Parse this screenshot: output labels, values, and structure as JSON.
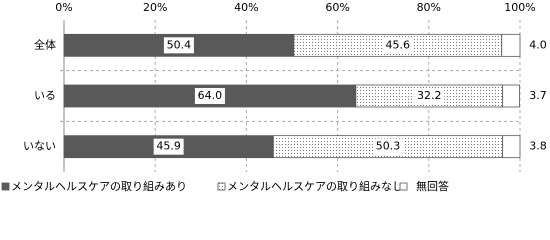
{
  "chart_data": {
    "type": "stacked-barh",
    "categories": [
      "全体",
      "いる",
      "いない"
    ],
    "series": [
      {
        "name": "メンタルヘルスケアの取り組みあり",
        "color": "#595959",
        "values": [
          50.4,
          64.0,
          45.9
        ],
        "value_labels": [
          "50.4",
          "64.0",
          "45.9"
        ]
      },
      {
        "name": "メンタルヘルスケアの取り組みなし",
        "color": "#ffffff",
        "pattern": "dots",
        "values": [
          45.6,
          32.2,
          50.3
        ],
        "value_labels": [
          "45.6",
          "32.2",
          "50.3"
        ]
      },
      {
        "name": "無回答",
        "color": "#ffffff",
        "values": [
          4.0,
          3.7,
          3.8
        ],
        "value_labels": [
          "4.0",
          "3.7",
          "3.8"
        ]
      }
    ],
    "xlim": [
      0,
      100
    ],
    "xticks": [
      {
        "value": 0,
        "label": "0%"
      },
      {
        "value": 20,
        "label": "20%"
      },
      {
        "value": 40,
        "label": "40%"
      },
      {
        "value": 60,
        "label": "60%"
      },
      {
        "value": 80,
        "label": "80%"
      },
      {
        "value": 100,
        "label": "100%"
      }
    ],
    "grid": true,
    "legend": "bottom"
  }
}
